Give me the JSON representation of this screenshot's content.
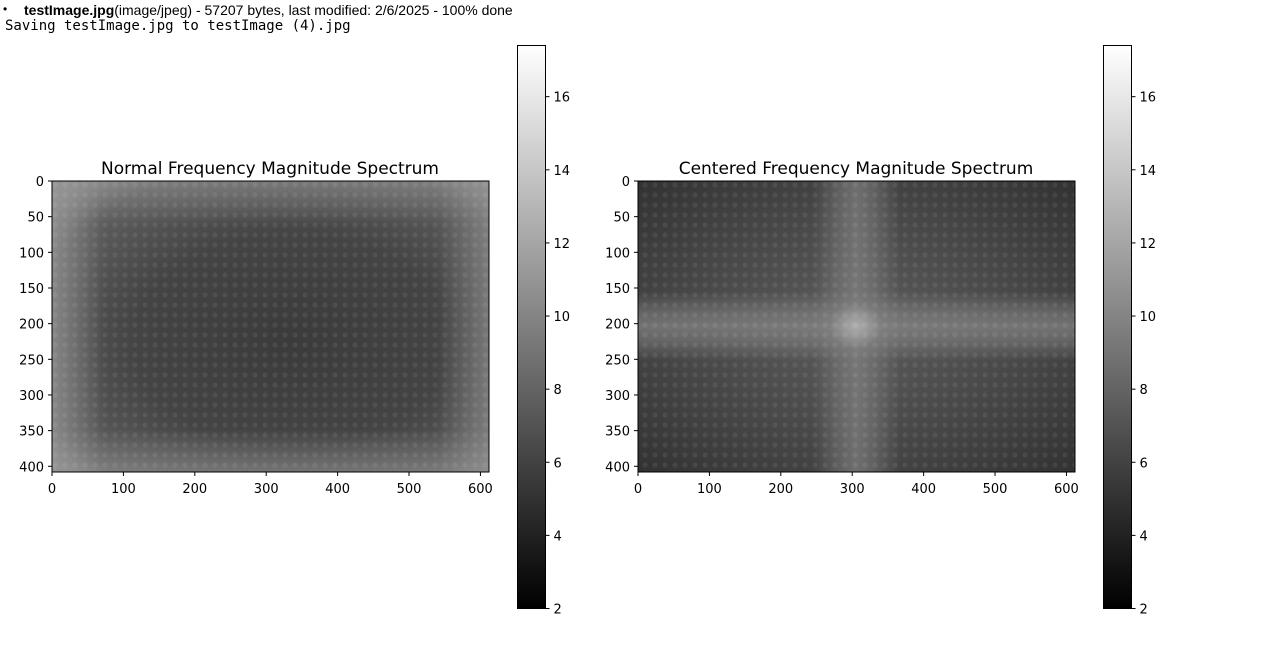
{
  "upload": {
    "bullet": "•",
    "filename": "testImage.jpg",
    "details": "(image/jpeg) - 57207 bytes, last modified: 2/6/2025 - 100% done"
  },
  "saving_text": "Saving testImage.jpg to testImage (4).jpg",
  "chart_data": [
    {
      "type": "heatmap",
      "title": "Normal Frequency Magnitude Spectrum",
      "description_pattern": "bright edges and corners, dark center",
      "x_ticks": [
        "0",
        "100",
        "200",
        "300",
        "400",
        "500",
        "600"
      ],
      "y_ticks": [
        "0",
        "50",
        "100",
        "150",
        "200",
        "250",
        "300",
        "350",
        "400"
      ],
      "xlim": [
        0,
        612
      ],
      "ylim": [
        408,
        0
      ],
      "colorbar": {
        "cmap": "gray",
        "range": [
          2,
          17.4
        ],
        "ticks": [
          "2",
          "4",
          "6",
          "8",
          "10",
          "12",
          "14",
          "16"
        ]
      }
    },
    {
      "type": "heatmap",
      "title": "Centered Frequency Magnitude Spectrum",
      "description_pattern": "bright cross through center (x≈306, y≈204), dark corners",
      "x_ticks": [
        "0",
        "100",
        "200",
        "300",
        "400",
        "500",
        "600"
      ],
      "y_ticks": [
        "0",
        "50",
        "100",
        "150",
        "200",
        "250",
        "300",
        "350",
        "400"
      ],
      "xlim": [
        0,
        612
      ],
      "ylim": [
        408,
        0
      ],
      "colorbar": {
        "cmap": "gray",
        "range": [
          2,
          17.4
        ],
        "ticks": [
          "2",
          "4",
          "6",
          "8",
          "10",
          "12",
          "14",
          "16"
        ]
      }
    }
  ]
}
